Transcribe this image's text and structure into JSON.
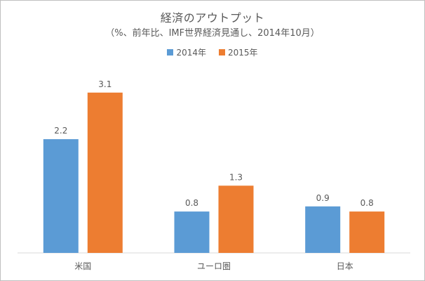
{
  "chart": {
    "title": "経済のアウトプット",
    "subtitle": "（%、前年比、IMF世界経済見通し、2014年10月）",
    "colors": {
      "series_2014": "#5b9bd5",
      "series_2015": "#ed7d31",
      "axis": "#d9d9d9",
      "text": "#595959",
      "border": "#bfbfbf"
    }
  },
  "chart_data": {
    "type": "bar",
    "title": "経済のアウトプット",
    "subtitle": "（%、前年比、IMF世界経済見通し、2014年10月）",
    "categories": [
      "米国",
      "ユーロ圏",
      "日本"
    ],
    "series": [
      {
        "name": "2014年",
        "values": [
          2.2,
          0.8,
          0.9
        ]
      },
      {
        "name": "2015年",
        "values": [
          3.1,
          1.3,
          0.8
        ]
      }
    ],
    "xlabel": "",
    "ylabel": "",
    "ylim": [
      0,
      3.5
    ],
    "grid": false,
    "legend": "top",
    "data_labels": true
  }
}
